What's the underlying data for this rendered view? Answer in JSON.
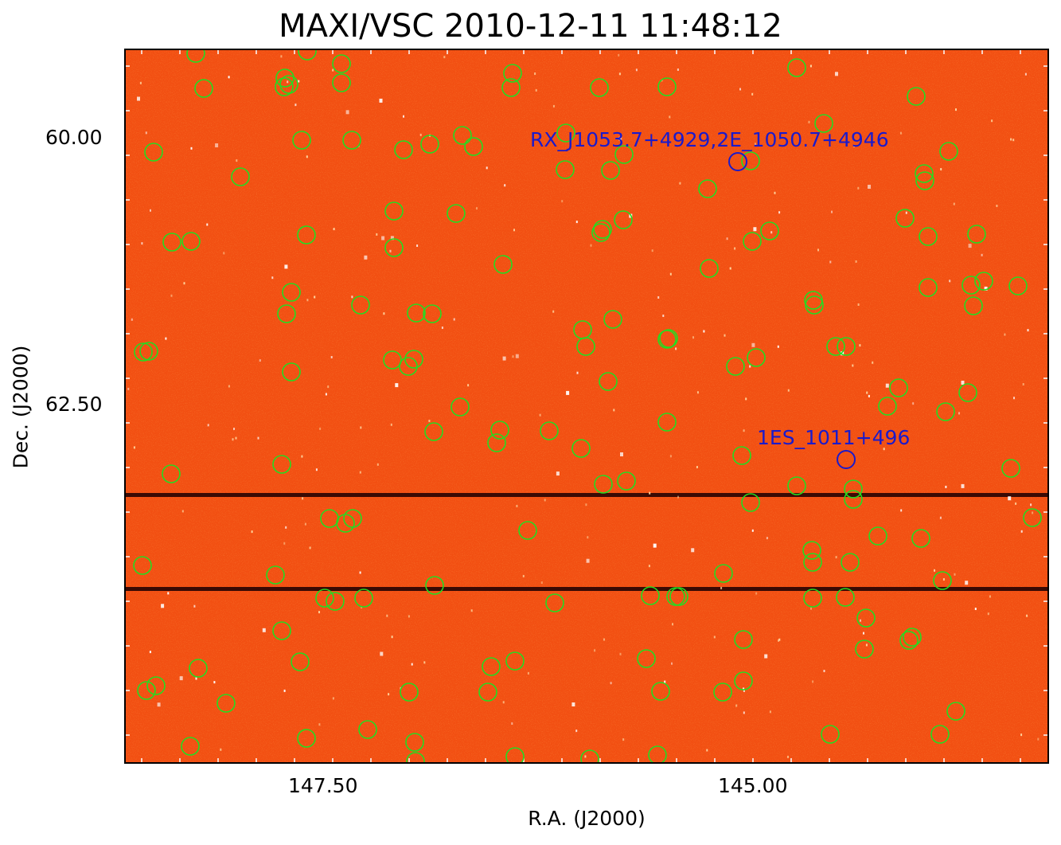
{
  "title": "MAXI/VSC 2010-12-11 11:48:12",
  "axes": {
    "xlabel": "R.A. (J2000)",
    "ylabel": "Dec. (J2000)",
    "xticks": [
      "147.50",
      "145.00"
    ],
    "yticks": [
      "60.00",
      "62.50"
    ]
  },
  "colors": {
    "background": "#f24f12",
    "detection_circle": "#22dd22",
    "source_marker": "#1a1acc",
    "label": "#1a1acc",
    "streak": "#3a0a04"
  },
  "sources": [
    {
      "label": "RX_J1053.7+4929,2E_1050.7+4946"
    },
    {
      "label": "1ES_1011+496"
    }
  ],
  "icons": [
    "green-detection-circle",
    "blue-source-circle"
  ]
}
